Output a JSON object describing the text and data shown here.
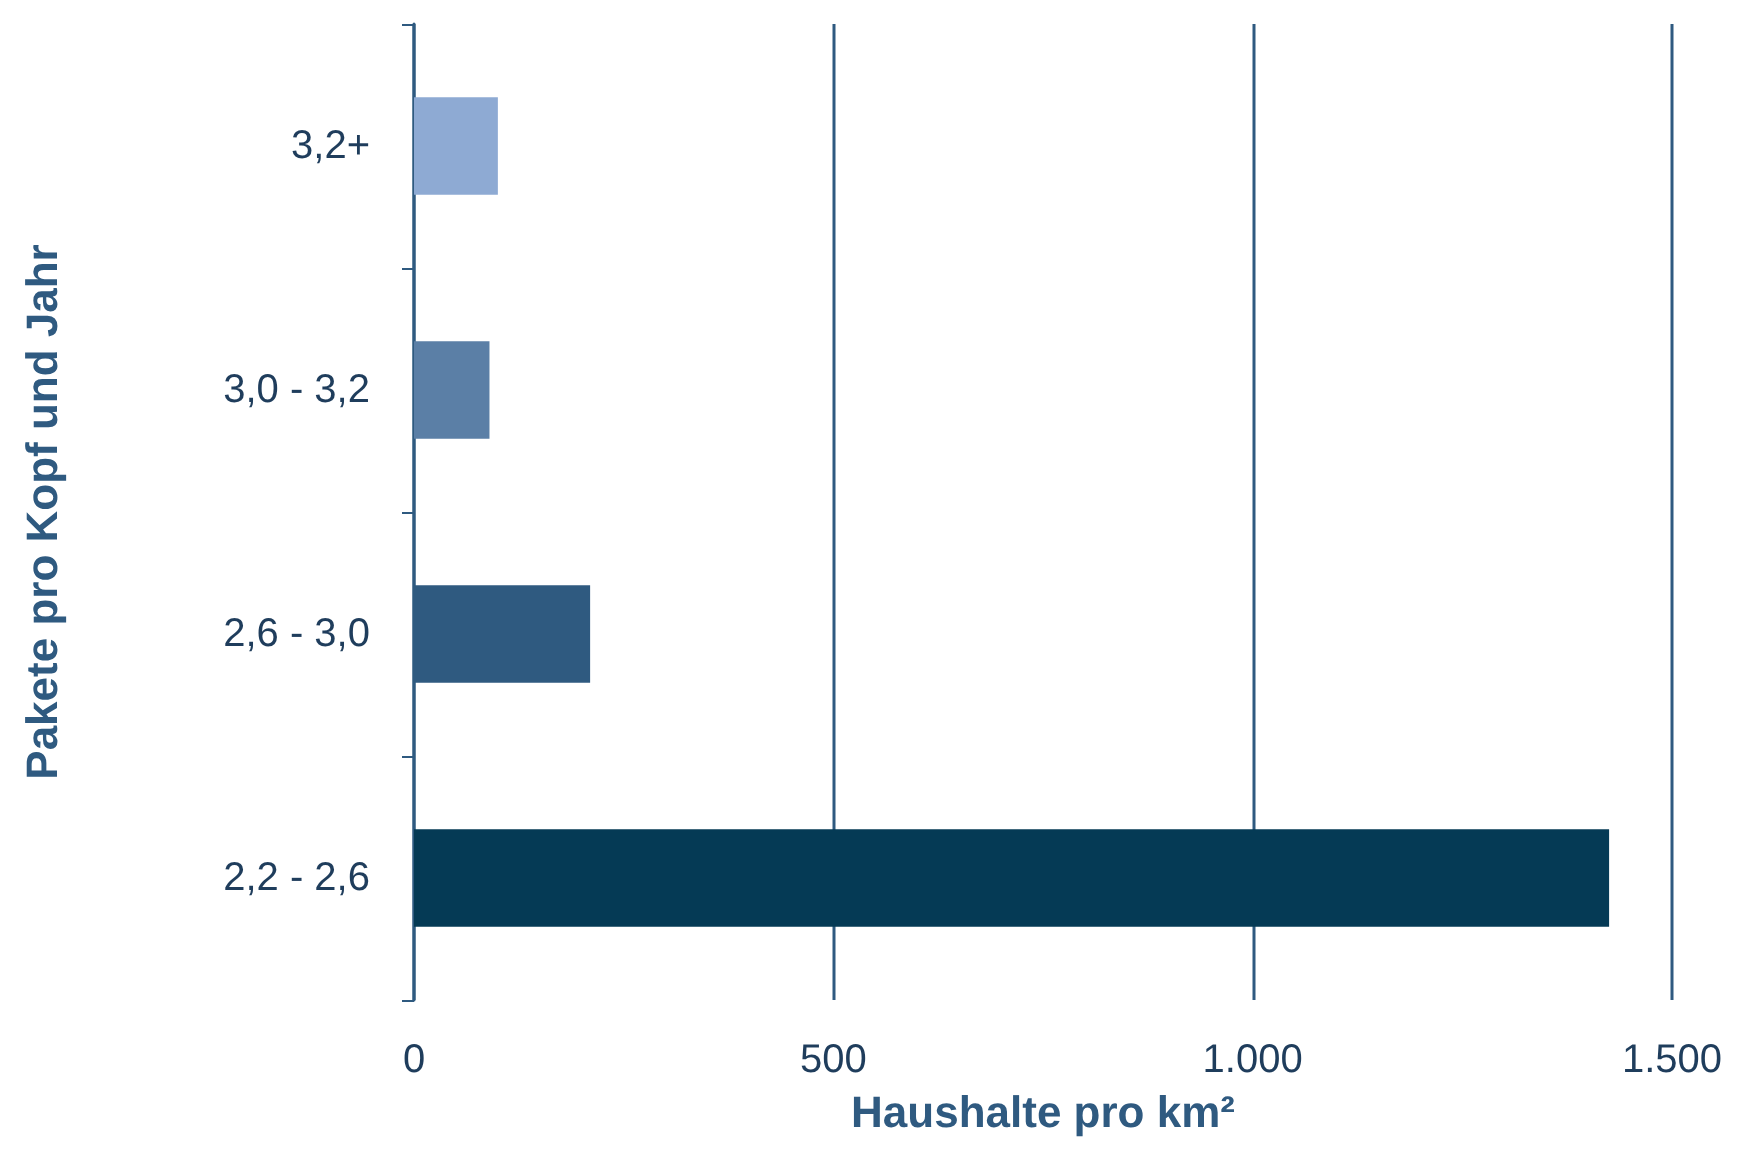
{
  "chart_data": {
    "type": "bar",
    "orientation": "horizontal",
    "xlabel": "Haushalte pro km²",
    "ylabel": "Pakete pro Kopf und Jahr",
    "categories": [
      "3,2+",
      "3,0 - 3,2",
      "2,6 - 3,0",
      "2,2 - 2,6"
    ],
    "values": [
      100,
      90,
      210,
      1425
    ],
    "colors": [
      "#8eaad3",
      "#5b7fa6",
      "#2f5a80",
      "#053a55"
    ],
    "xlim": [
      0,
      1500
    ],
    "xticks": [
      0,
      500,
      {
        "value": 1000,
        "label": "1.000"
      },
      {
        "value": 1500,
        "label": "1.500"
      }
    ],
    "grid": "x"
  }
}
